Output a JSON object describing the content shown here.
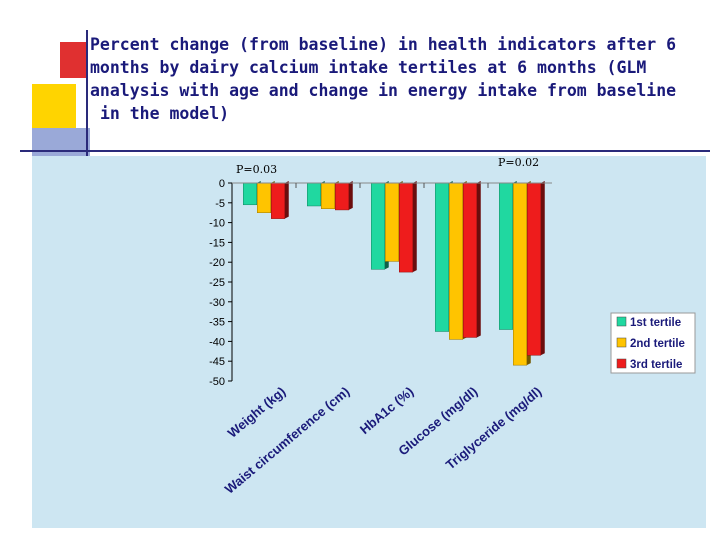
{
  "slide": {
    "title": "Percent change (from baseline) in health indicators after 6\nmonths by dairy calcium intake tertiles at 6 months (GLM\nanalysis with age and change in energy intake from baseline\n in the model)"
  },
  "colors": {
    "background": "#ffffff",
    "plot_background": "#cde6f2",
    "title_text": "#1a1a7a",
    "series": [
      "#20d8a0",
      "#ffc400",
      "#ee1c1c"
    ]
  },
  "chart_data": {
    "type": "bar",
    "title": "",
    "xlabel": "",
    "ylabel": "",
    "ylim": [
      -50,
      0
    ],
    "yticks": [
      0,
      -5,
      -10,
      -15,
      -20,
      -25,
      -30,
      -35,
      -40,
      -45,
      -50
    ],
    "grid": false,
    "legend_position": "right",
    "categories": [
      "Weight (kg)",
      "Waist circumference (cm)",
      "HbA1c (%)",
      "Glucose (mg/dl)",
      "Triglyceride (mg/dl)"
    ],
    "series": [
      {
        "name": "1st tertile",
        "values": [
          -5.5,
          -5.8,
          -21.8,
          -37.5,
          -37.0
        ]
      },
      {
        "name": "2nd tertile",
        "values": [
          -7.5,
          -6.5,
          -19.8,
          -39.5,
          -46.0
        ]
      },
      {
        "name": "3rd tertile",
        "values": [
          -9.0,
          -6.8,
          -22.5,
          -39.0,
          -43.5
        ]
      }
    ],
    "annotations": [
      {
        "text": "P=0.03",
        "category": "Weight (kg)"
      },
      {
        "text": "P=0.02",
        "category": "Triglyceride (mg/dl)"
      }
    ]
  }
}
